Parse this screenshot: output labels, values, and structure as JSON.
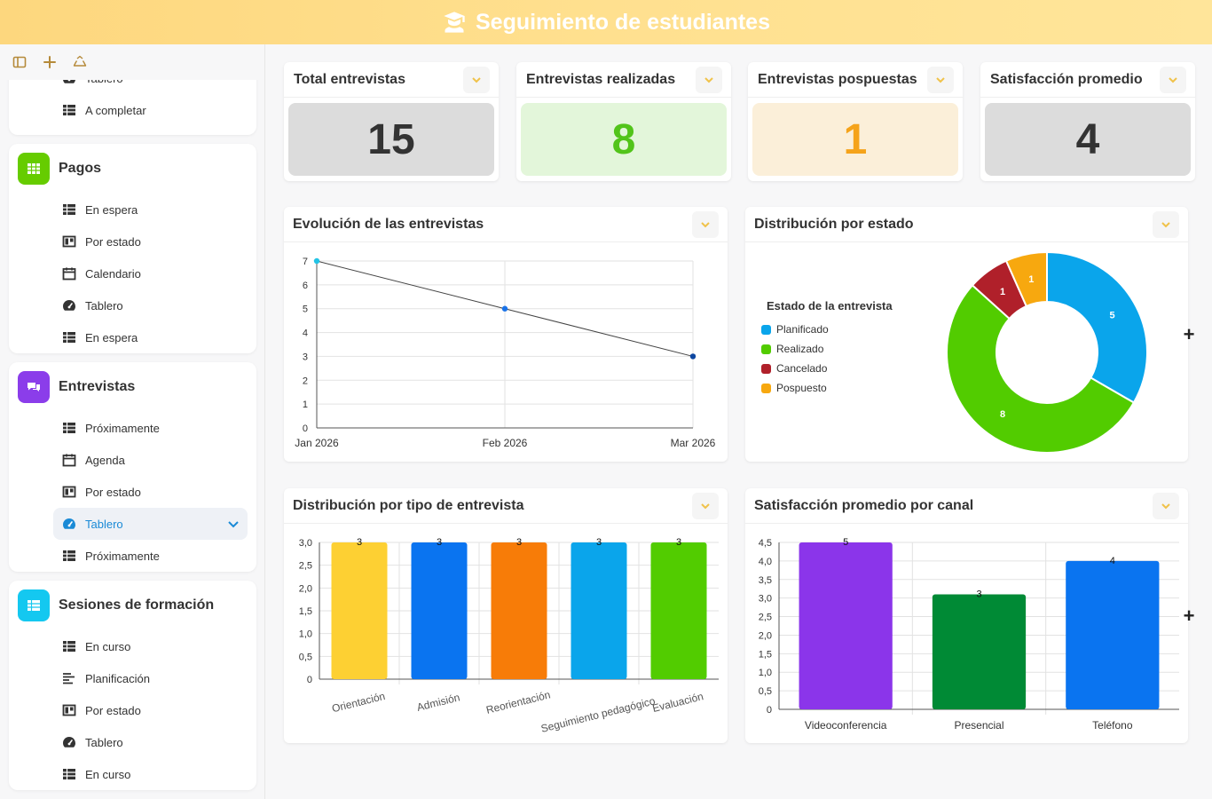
{
  "header": {
    "title": "Seguimiento de estudiantes",
    "icon": "graduate-icon"
  },
  "sidebar": {
    "toolbar": [
      {
        "icon": "layout-icon"
      },
      {
        "icon": "plus-icon"
      },
      {
        "icon": "recycle-icon"
      }
    ],
    "top_partial": {
      "items": [
        {
          "label": "Tablero",
          "icon": "dashboard-icon"
        },
        {
          "label": "A completar",
          "icon": "table-icon"
        }
      ]
    },
    "apps": [
      {
        "name": "Pagos",
        "color": "#66cc00",
        "items": [
          {
            "label": "En espera",
            "icon": "table-icon"
          },
          {
            "label": "Por estado",
            "icon": "kanban-icon"
          },
          {
            "label": "Calendario",
            "icon": "calendar-icon"
          },
          {
            "label": "Tablero",
            "icon": "dashboard-icon"
          },
          {
            "label": "En espera",
            "icon": "table-icon"
          }
        ]
      },
      {
        "name": "Entrevistas",
        "color": "#8b3dea",
        "items": [
          {
            "label": "Próximamente",
            "icon": "table-icon"
          },
          {
            "label": "Agenda",
            "icon": "calendar-icon"
          },
          {
            "label": "Por estado",
            "icon": "kanban-icon"
          },
          {
            "label": "Tablero",
            "icon": "dashboard-icon",
            "active": true
          },
          {
            "label": "Próximamente",
            "icon": "table-icon"
          }
        ]
      },
      {
        "name": "Sesiones de formación",
        "color": "#14c8f0",
        "items": [
          {
            "label": "En curso",
            "icon": "table-icon"
          },
          {
            "label": "Planificación",
            "icon": "gantt-icon"
          },
          {
            "label": "Por estado",
            "icon": "kanban-icon"
          },
          {
            "label": "Tablero",
            "icon": "dashboard-icon"
          },
          {
            "label": "En curso",
            "icon": "table-icon"
          }
        ]
      }
    ]
  },
  "kpis": [
    {
      "label": "Total entrevistas",
      "value": "15",
      "bg": "#dcdcdc",
      "color": "#333333"
    },
    {
      "label": "Entrevistas realizadas",
      "value": "8",
      "bg": "#e3f6da",
      "color": "#52c41a"
    },
    {
      "label": "Entrevistas pospuestas",
      "value": "1",
      "bg": "#fbefd9",
      "color": "#f5a31a"
    },
    {
      "label": "Satisfacción promedio",
      "value": "4",
      "bg": "#dcdcdc",
      "color": "#333333"
    }
  ],
  "panels": {
    "evolucion": {
      "title": "Evolución de las entrevistas"
    },
    "estado": {
      "title": "Distribución por estado"
    },
    "tipo": {
      "title": "Distribución por tipo de entrevista"
    },
    "canal": {
      "title": "Satisfacción promedio por canal"
    }
  },
  "chart_data": [
    {
      "type": "line",
      "title": "Evolución de las entrevistas",
      "x": [
        "Jan 2026",
        "Feb 2026",
        "Mar 2026"
      ],
      "series": [
        {
          "values": [
            7,
            5,
            3
          ]
        }
      ],
      "ylim": [
        0,
        7
      ],
      "yticks": [
        "0",
        "1",
        "2",
        "3",
        "4",
        "5",
        "6",
        "7"
      ],
      "grid": true,
      "point_colors": [
        "#22c3e6",
        "#1a73e8",
        "#0d47a1"
      ]
    },
    {
      "type": "pie",
      "title": "Distribución por estado",
      "legend_title": "Estado de la entrevista",
      "legend": "left",
      "slices": [
        {
          "label": "Planificado",
          "value": 5,
          "color": "#0aa5eb"
        },
        {
          "label": "Realizado",
          "value": 8,
          "color": "#52cc00"
        },
        {
          "label": "Cancelado",
          "value": 1,
          "color": "#b0202a"
        },
        {
          "label": "Pospuesto",
          "value": 1,
          "color": "#f7a80f"
        }
      ]
    },
    {
      "type": "bar",
      "title": "Distribución por tipo de entrevista",
      "categories": [
        "Orientación",
        "Admisión",
        "Reorientación",
        "Seguimiento pedagógico",
        "Evaluación"
      ],
      "values": [
        3,
        3,
        3,
        3,
        3
      ],
      "colors": [
        "#fdd033",
        "#0a74f0",
        "#f77c08",
        "#0aa5eb",
        "#52cc00"
      ],
      "ylim": [
        0,
        3
      ],
      "yticks": [
        "0",
        "0,5",
        "1,0",
        "1,5",
        "2,0",
        "2,5",
        "3,0"
      ],
      "grid": true
    },
    {
      "type": "bar",
      "title": "Satisfacción promedio por canal",
      "categories": [
        "Videoconferencia",
        "Presencial",
        "Teléfono"
      ],
      "values": [
        4.5,
        3.1,
        4.0
      ],
      "data_labels": [
        "5",
        "3",
        "4"
      ],
      "colors": [
        "#8b35ea",
        "#008a35",
        "#0a74f0"
      ],
      "ylim": [
        0,
        4.5
      ],
      "yticks": [
        "0",
        "0,5",
        "1,0",
        "1,5",
        "2,0",
        "2,5",
        "3,0",
        "3,5",
        "4,0",
        "4,5"
      ],
      "grid": true
    }
  ]
}
